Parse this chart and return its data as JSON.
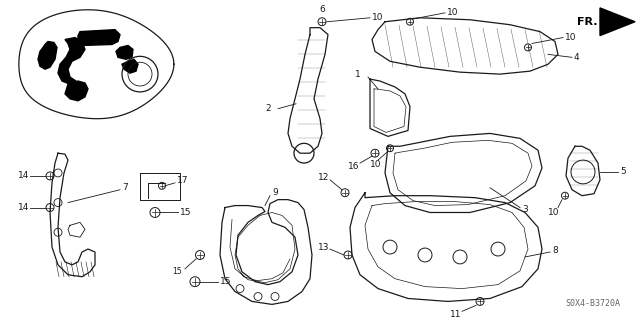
{
  "bg_color": "#ffffff",
  "diagram_color": "#1a1a1a",
  "fr_label": "FR.",
  "watermark": "S0X4-B3720A",
  "fig_width": 6.4,
  "fig_height": 3.19,
  "dpi": 100
}
